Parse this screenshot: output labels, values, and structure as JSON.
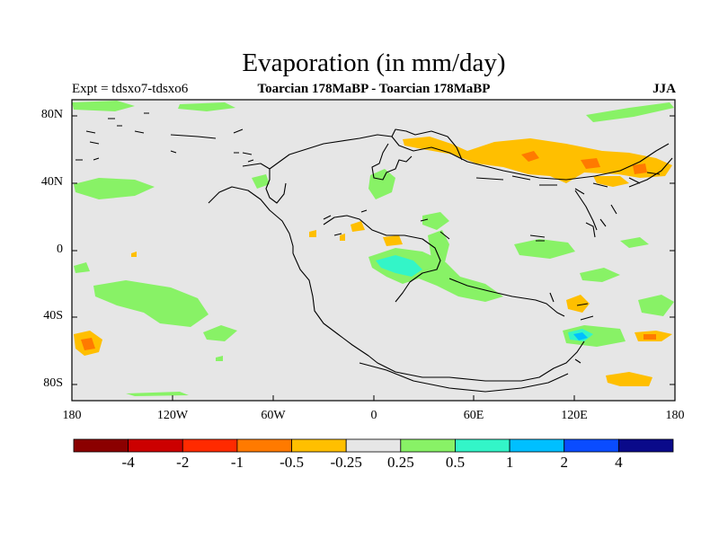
{
  "title": "Evaporation (in mm/day)",
  "left_label": "Expt = tdsxo7-tdsxo6",
  "center_label": "Toarcian 178MaBP - Toarcian 178MaBP",
  "right_label": "JJA",
  "lat_ticks": [
    "80N",
    "40N",
    "0",
    "40S",
    "80S"
  ],
  "lon_ticks": [
    "180",
    "120W",
    "60W",
    "0",
    "60E",
    "120E",
    "180"
  ],
  "colorbar": {
    "labels": [
      "-4",
      "-2",
      "-1",
      "-0.5",
      "-0.25",
      "0.25",
      "0.5",
      "1",
      "2",
      "4"
    ],
    "colors": [
      "#8b0000",
      "#cc0000",
      "#ff2a00",
      "#ff7a00",
      "#ffbf00",
      "#e6e6e6",
      "#88f266",
      "#33f5c8",
      "#00bfff",
      "#0a4cff",
      "#0a0a8a"
    ]
  },
  "colors": {
    "ocean_background": "#e6e6e6",
    "coastline": "#000000"
  }
}
